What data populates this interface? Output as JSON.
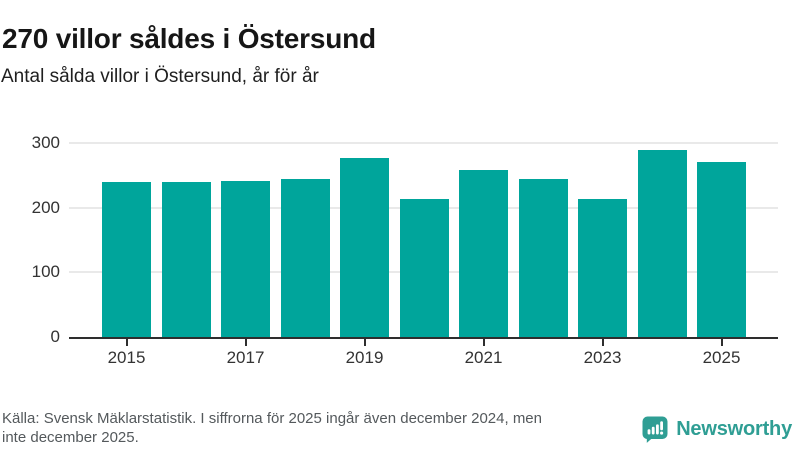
{
  "header": {
    "title": "270 villor såldes i Östersund",
    "subtitle": "Antal sålda villor i Östersund, år för år"
  },
  "chart_data": {
    "type": "bar",
    "title": "270 villor såldes i Östersund",
    "subtitle": "Antal sålda villor i Östersund, år för år",
    "categories": [
      "2015",
      "2016",
      "2017",
      "2018",
      "2019",
      "2020",
      "2021",
      "2022",
      "2023",
      "2024",
      "2025"
    ],
    "values": [
      240,
      240,
      242,
      245,
      277,
      214,
      258,
      245,
      214,
      289,
      270
    ],
    "x_tick_labels": [
      "2015",
      "2017",
      "2019",
      "2021",
      "2023",
      "2025"
    ],
    "y_ticks": [
      0,
      100,
      200,
      300
    ],
    "ylim": [
      0,
      300
    ],
    "xlabel": "",
    "ylabel": "",
    "legend": "none",
    "grid": "horizontal-only",
    "bar_color": "#00a59b",
    "gridline_color": "#e9e9e9",
    "axis_color": "#2e2e2e",
    "tick_label_color": "#333333"
  },
  "footer": {
    "source_lines": [
      "Källa: Svensk Mäklarstatistik. I siffrorna för 2025 ingår även december 2024, men",
      "inte december 2025."
    ],
    "logo": {
      "text": "Newsworthy",
      "icon": "newsworthy-speech-bubble-bar-chart-icon",
      "color": "#2f9e94"
    }
  }
}
